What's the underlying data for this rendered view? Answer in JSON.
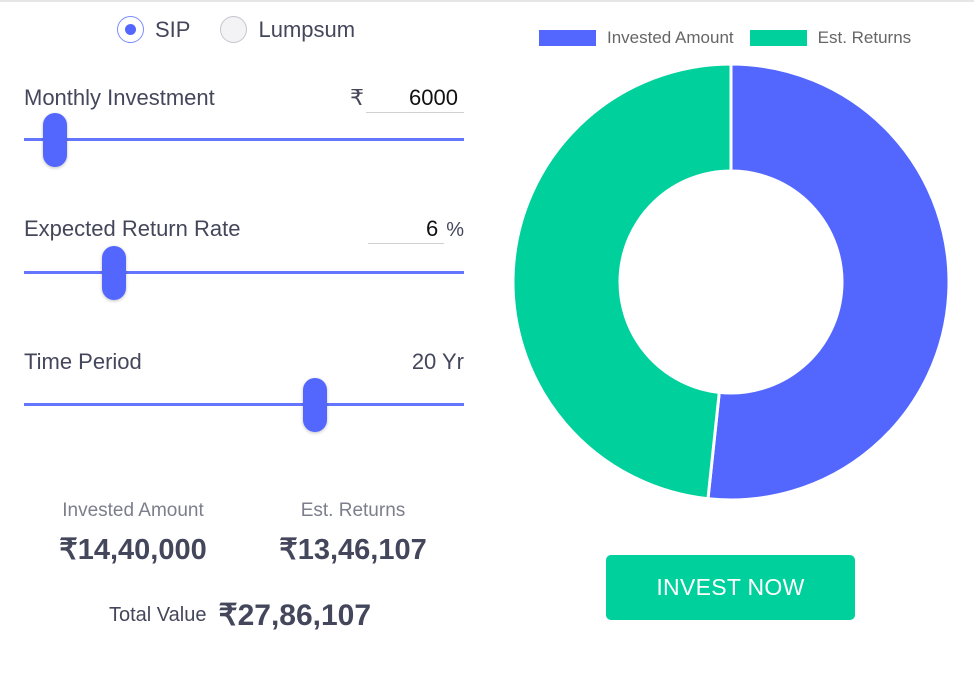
{
  "calculator": {
    "modes": [
      {
        "label": "SIP",
        "selected": true
      },
      {
        "label": "Lumpsum",
        "selected": false
      }
    ],
    "monthly_investment": {
      "label": "Monthly Investment",
      "currency": "₹",
      "value": "6000",
      "slider_fraction": 0.05
    },
    "return_rate": {
      "label": "Expected Return Rate",
      "value": "6",
      "unit": "%",
      "slider_fraction": 0.19
    },
    "time_period": {
      "label": "Time Period",
      "value_text": "20 Yr",
      "slider_fraction": 0.67
    }
  },
  "summary": {
    "invested_label": "Invested Amount",
    "invested_value": "₹14,40,000",
    "returns_label": "Est. Returns",
    "returns_value": "₹13,46,107",
    "total_label": "Total Value",
    "total_value": "₹27,86,107"
  },
  "chart_data": {
    "type": "pie",
    "categories": [
      "Invested Amount",
      "Est. Returns"
    ],
    "values": [
      1440000,
      1346107
    ],
    "colors": [
      "#5367ff",
      "#00d09c"
    ],
    "legend_position": "top"
  },
  "cta": {
    "label": "INVEST NOW"
  },
  "colors": {
    "accent": "#5367ff",
    "brand_green": "#00d09c"
  }
}
